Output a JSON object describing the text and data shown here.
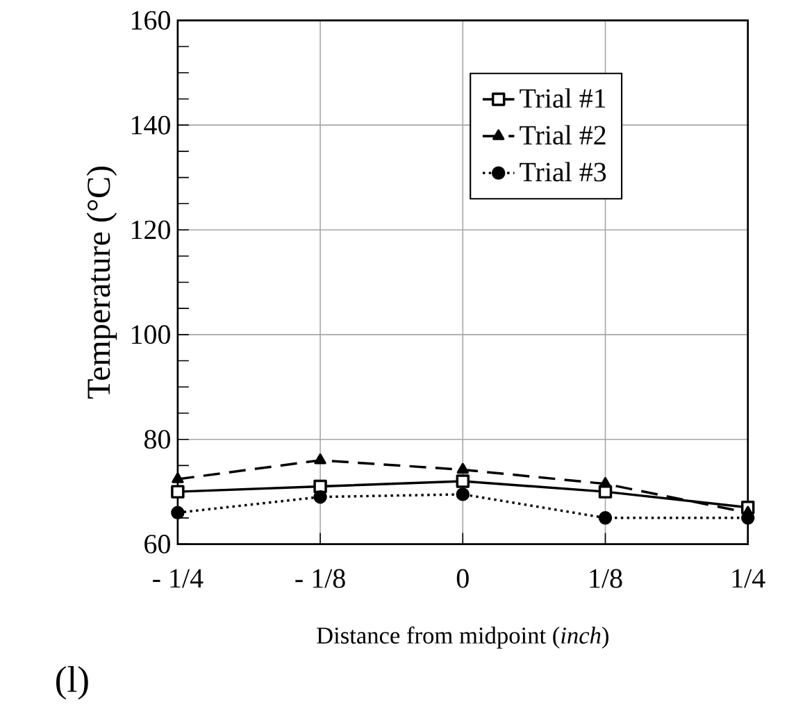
{
  "chart_data": {
    "type": "line",
    "xlabel": "Distance from midpoint (*inch*)",
    "ylabel": "Temperature (°C)",
    "categories": [
      "- 1/4",
      "- 1/8",
      "0",
      "1/8",
      "1/4"
    ],
    "series": [
      {
        "name": "Trial #1",
        "color": "#000000",
        "marker": "square",
        "line_style": "solid",
        "values": [
          70,
          71,
          72,
          70,
          67
        ]
      },
      {
        "name": "Trial #2",
        "color": "#000000",
        "marker": "triangle",
        "line_style": "dashed",
        "values": [
          72.4,
          76,
          74.2,
          71.5,
          66
        ]
      },
      {
        "name": "Trial #3",
        "color": "#000000",
        "marker": "circle",
        "line_style": "dotted",
        "values": [
          66,
          69,
          69.5,
          65,
          65
        ]
      }
    ],
    "ylim": [
      60,
      160
    ],
    "yticks": [
      60,
      {
        "value": 65,
        "label": null
      },
      {
        "value": 70,
        "label": null
      },
      {
        "value": 75,
        "label": null
      },
      80,
      {
        "value": 85,
        "label": null
      },
      {
        "value": 90,
        "label": null
      },
      {
        "value": 95,
        "label": null
      },
      100,
      {
        "value": 105,
        "label": null
      },
      {
        "value": 110,
        "label": null
      },
      {
        "value": 115,
        "label": null
      },
      120,
      {
        "value": 125,
        "label": null
      },
      {
        "value": 130,
        "label": null
      },
      {
        "value": 135,
        "label": null
      },
      140,
      {
        "value": 145,
        "label": null
      },
      {
        "value": 150,
        "label": null
      },
      {
        "value": 155,
        "label": null
      },
      160
    ],
    "grid": true,
    "legend": "top right",
    "annotations": [
      "(l)"
    ]
  }
}
